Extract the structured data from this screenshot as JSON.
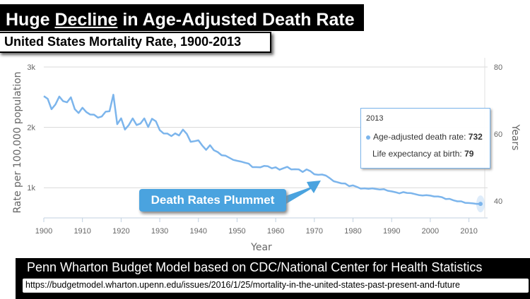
{
  "header": {
    "title_pre": "Huge ",
    "title_underlined": "Decline",
    "title_post": " in Age-Adjusted Death Rate",
    "subtitle": "United States Mortality Rate, 1900-2013"
  },
  "tooltip": {
    "year": "2013",
    "line1_label": "Age-adjusted death rate: ",
    "line1_value": "732",
    "line2_label": "Life expectancy at birth: ",
    "line2_value": "79"
  },
  "callout": "Death Rates Plummet",
  "footer": {
    "source": "Penn Wharton Budget Model based on CDC/National Center for Health Statistics",
    "url": "https://budgetmodel.wharton.upenn.edu/issues/2016/1/25/mortality-in-the-united-states-past-present-and-future"
  },
  "chart_data": {
    "type": "line",
    "xlabel": "Year",
    "ylabel": "Rate per 100,000 population",
    "y2label": "Years",
    "xlim": [
      1900,
      2013
    ],
    "ylim": [
      500,
      3000
    ],
    "y2lim": [
      35,
      80
    ],
    "x_ticks": [
      "1900",
      "1910",
      "1920",
      "1930",
      "1940",
      "1950",
      "1960",
      "1970",
      "1980",
      "1990",
      "2000",
      "2010"
    ],
    "y_ticks": [
      {
        "value": 3000,
        "label": "3k"
      },
      {
        "value": 2000,
        "label": "2k"
      },
      {
        "value": 1000,
        "label": "1k"
      }
    ],
    "y2_ticks": [
      {
        "value": 80,
        "label": "80"
      },
      {
        "value": 60,
        "label": "60"
      },
      {
        "value": 40,
        "label": "40"
      }
    ],
    "grid": true,
    "color": "#7cb5ec",
    "series": [
      {
        "x_start": 1900,
        "values": [
          2518,
          2473,
          2301,
          2379,
          2510,
          2435,
          2415,
          2498,
          2302,
          2238,
          2325,
          2253,
          2213,
          2210,
          2161,
          2180,
          2259,
          2268,
          2541,
          2053,
          2149,
          1964,
          2038,
          2148,
          2038,
          2063,
          2148,
          2006,
          2143,
          2100,
          1953,
          1900,
          1897,
          1855,
          1901,
          1866,
          1963,
          1891,
          1761,
          1771,
          1785,
          1699,
          1627,
          1704,
          1621,
          1591,
          1539,
          1531,
          1497,
          1461,
          1446,
          1433,
          1415,
          1398,
          1341,
          1341,
          1338,
          1361,
          1355,
          1321,
          1339,
          1298,
          1323,
          1346,
          1304,
          1306,
          1303,
          1261,
          1304,
          1273,
          1223,
          1214,
          1218,
          1201,
          1158,
          1108,
          1091,
          1073,
          1069,
          1026,
          1039,
          1014,
          985,
          990,
          983,
          989,
          979,
          970,
          976,
          950,
          939,
          925,
          906,
          927,
          913,
          910,
          895,
          879,
          871,
          876,
          869,
          855,
          855,
          843,
          813,
          816,
          791,
          775,
          775,
          750,
          747,
          741,
          733,
          732
        ]
      }
    ]
  }
}
